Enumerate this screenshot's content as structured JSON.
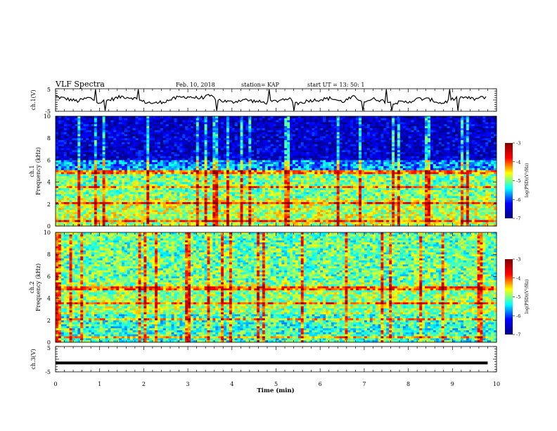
{
  "header": {
    "title": "VLF Spectra",
    "date": "Feb. 10, 2018",
    "station": "station= KAP",
    "start": "start  UT =   13: 50: 1"
  },
  "colors": {
    "colormap": [
      "#00007f",
      "#0000ff",
      "#00ffff",
      "#ffff00",
      "#ff0000",
      "#7f0000"
    ],
    "waveform": "#000000",
    "axes": "#000000"
  },
  "chart_data": [
    {
      "type": "line",
      "panel": "ch1-waveform",
      "ylabel": "ch.1(V)",
      "ylim": [
        -5,
        5
      ],
      "yticks": [
        "5",
        "-5"
      ],
      "xlim": [
        0,
        10
      ],
      "series": [
        {
          "x": [
            0,
            0.25,
            0.5,
            0.75,
            1.0,
            1.25,
            1.5,
            1.75,
            2.0,
            2.25,
            2.5,
            2.75,
            3.0,
            3.25,
            3.5,
            3.75,
            4.0,
            4.25,
            4.5,
            4.75,
            5.0,
            5.25,
            5.5,
            5.75,
            6.0,
            6.25,
            6.5,
            6.75,
            7.0,
            7.25,
            7.5,
            7.75,
            8.0,
            8.25,
            8.5,
            8.75,
            9.0,
            9.25,
            9.5,
            9.8
          ],
          "values": [
            1.5,
            0.5,
            -0.5,
            1.0,
            -1.0,
            0.2,
            1.5,
            1.0,
            -0.8,
            -1.5,
            -0.5,
            1.0,
            1.5,
            0.8,
            1.8,
            -0.3,
            -1.0,
            0.2,
            -0.5,
            -1.2,
            -0.5,
            0.8,
            -1.5,
            -0.2,
            0.2,
            0.8,
            -0.8,
            1.3,
            -0.5,
            0.5,
            -0.8,
            -1.2,
            -0.8,
            0.6,
            0.2,
            -1.5,
            0.3,
            1.2,
            0.4,
            1.5
          ]
        }
      ]
    },
    {
      "type": "heatmap",
      "panel": "ch1-spectrogram",
      "ylabel": "ch.1\nFrequency (kHz)",
      "ylim": [
        0,
        10
      ],
      "yticks": [
        "0",
        "2",
        "4",
        "6",
        "8",
        "10"
      ],
      "xlim": [
        0,
        10
      ],
      "colorbar": {
        "label": "log(PSD)(V²/Hz)",
        "range": [
          -7,
          -3
        ],
        "ticks": [
          "-3",
          "-4",
          "-5",
          "-6",
          "-7"
        ]
      }
    },
    {
      "type": "heatmap",
      "panel": "ch2-spectrogram",
      "ylabel": "ch.2\nFrequency (kHz)",
      "ylim": [
        0,
        10
      ],
      "yticks": [
        "0",
        "2",
        "4",
        "6",
        "8",
        "10"
      ],
      "xlim": [
        0,
        10
      ],
      "colorbar": {
        "label": "log(PSD)(V²/Hz)",
        "range": [
          -7,
          -3
        ],
        "ticks": [
          "-3",
          "-4",
          "-5",
          "-6",
          "-7"
        ]
      }
    },
    {
      "type": "line",
      "panel": "ch3-waveform",
      "ylabel": "ch.3(V)",
      "ylim": [
        -5,
        5
      ],
      "yticks": [
        "5",
        "-5"
      ],
      "xlim": [
        0,
        10
      ],
      "series": [
        {
          "x": [
            0,
            9.8
          ],
          "values": [
            -1.5,
            -1.5
          ]
        }
      ]
    }
  ],
  "xaxis": {
    "label": "Time  (min)",
    "ticks": [
      "0",
      "1",
      "2",
      "3",
      "4",
      "5",
      "6",
      "7",
      "8",
      "9",
      "10"
    ]
  }
}
